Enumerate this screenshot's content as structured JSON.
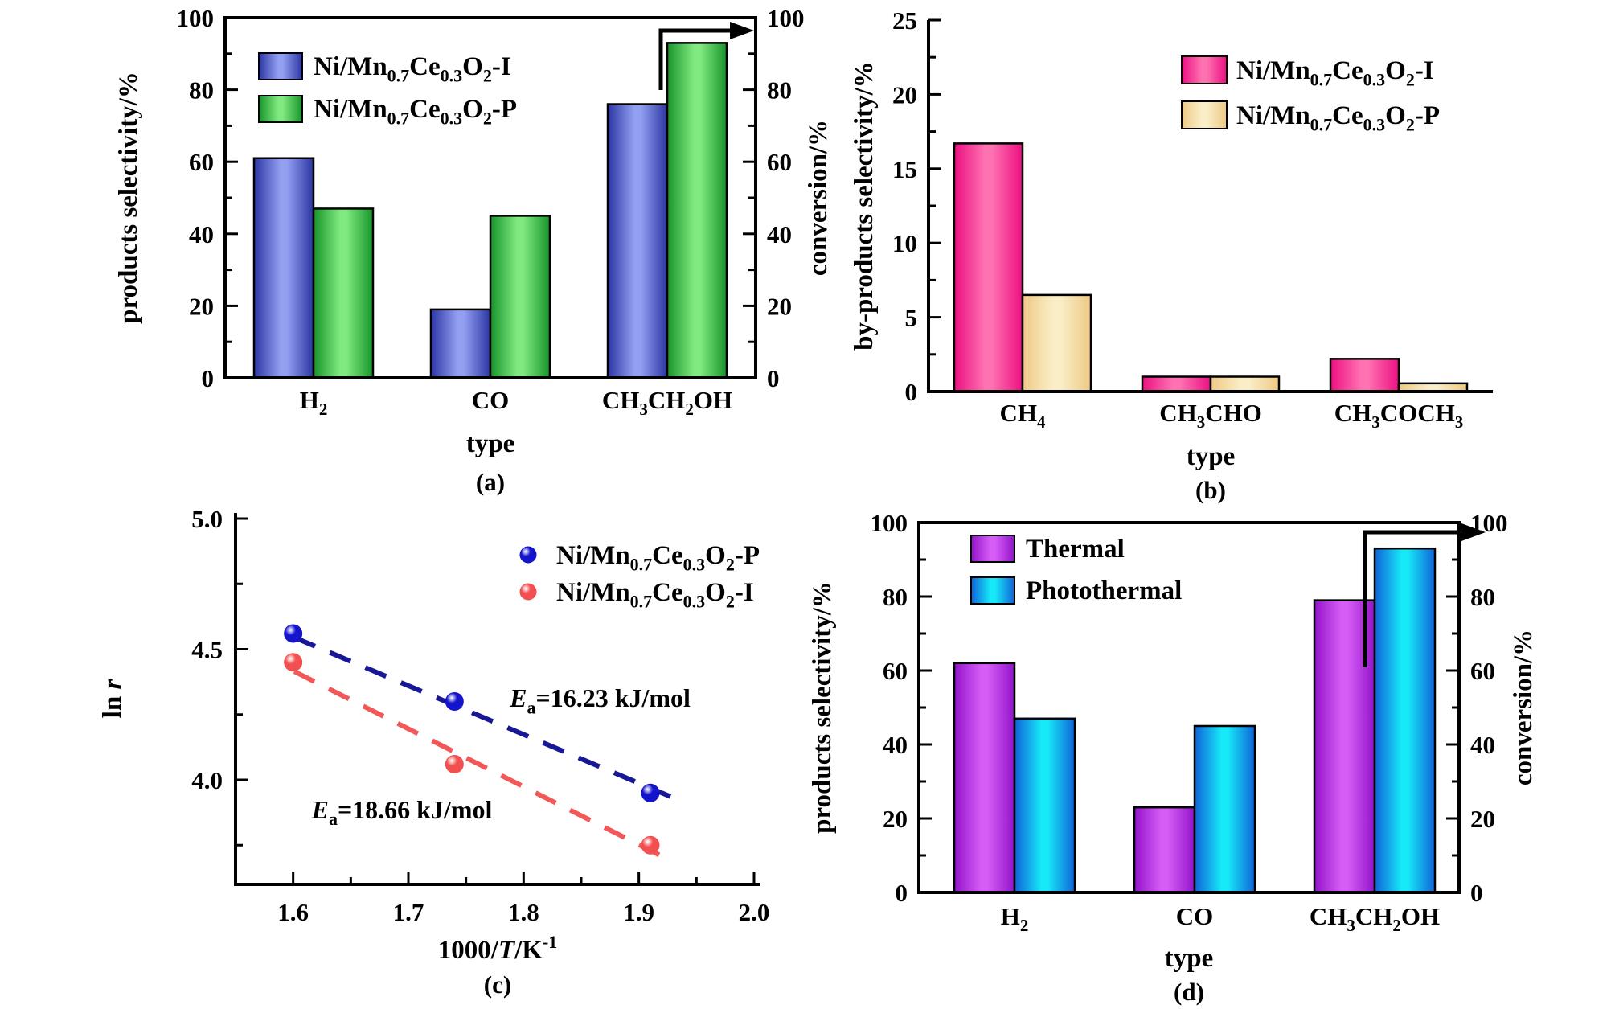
{
  "figure": {
    "background": "#ffffff",
    "description_tags": [
      "(a)",
      "(b)",
      "(c)",
      "(d)"
    ]
  },
  "chart_data": [
    {
      "id": "a",
      "type": "bar",
      "panel_label": "(a)",
      "xlabel": "type",
      "ylabel_left": "products selectivity/%",
      "ylabel_right": "conversion/%",
      "ylim": [
        0,
        100
      ],
      "y_ticks": {
        "values": [
          0,
          20,
          40,
          60,
          80,
          100
        ],
        "labels": [
          "0",
          "20",
          "40",
          "60",
          "80",
          "100"
        ]
      },
      "y_minor_ticks": [
        10,
        30,
        50,
        70,
        90
      ],
      "dual_axis": true,
      "grid": false,
      "legend_position": "top-left-inside",
      "categories": [
        "H_{2}",
        "CO",
        "CH_{3}CH_{2}OH"
      ],
      "series": [
        {
          "name": "Ni/Mn_{0.7}Ce_{0.3}O_{2}-I",
          "values": [
            61,
            19,
            76
          ],
          "edge_color": "#2b35a2",
          "mid_color": "#93a0f2"
        },
        {
          "name": "Ni/Mn_{0.7}Ce_{0.3}O_{2}-P",
          "values": [
            47,
            45,
            93
          ],
          "edge_color": "#17942a",
          "mid_color": "#80ea80"
        }
      ],
      "arrow_to_right_axis": true
    },
    {
      "id": "b",
      "type": "bar",
      "panel_label": "(b)",
      "xlabel": "type",
      "ylabel_left": "by-products selectivity/%",
      "ylim": [
        0,
        25
      ],
      "y_ticks": {
        "values": [
          0,
          5,
          10,
          15,
          20,
          25
        ],
        "labels": [
          "0",
          "5",
          "10",
          "15",
          "20",
          "25"
        ]
      },
      "y_minor_ticks": [
        2.5,
        7.5,
        12.5,
        17.5,
        22.5
      ],
      "dual_axis": false,
      "grid": false,
      "legend_position": "top-right-inside",
      "categories": [
        "CH_{4}",
        "CH_{3}CHO",
        "CH_{3}COCH_{3}"
      ],
      "series": [
        {
          "name": "Ni/Mn_{0.7}Ce_{0.3}O_{2}-I",
          "values": [
            16.7,
            1.0,
            2.2
          ],
          "edge_color": "#ec0f81",
          "mid_color": "#ff72b2"
        },
        {
          "name": "Ni/Mn_{0.7}Ce_{0.3}O_{2}-P",
          "values": [
            6.5,
            1.0,
            0.55
          ],
          "edge_color": "#eec985",
          "mid_color": "#faeec8"
        }
      ],
      "arrow_to_right_axis": false
    },
    {
      "id": "c",
      "type": "scatter",
      "panel_label": "(c)",
      "xlabel": "1000/*T*/K^{-1}",
      "ylabel_left": "ln *r*",
      "xlim": [
        1.55,
        2.0
      ],
      "ylim": [
        3.6,
        5.0
      ],
      "x_ticks": {
        "values": [
          1.6,
          1.7,
          1.8,
          1.9,
          2.0
        ],
        "labels": [
          "1.6",
          "1.7",
          "1.8",
          "1.9",
          "2.0"
        ]
      },
      "x_minor_ticks": [
        1.65,
        1.75,
        1.85,
        1.95
      ],
      "y_ticks": {
        "values": [
          4.0,
          4.5,
          5.0
        ],
        "labels": [
          "4.0",
          "4.5",
          "5.0"
        ]
      },
      "y_minor_ticks": [
        3.75,
        4.25,
        4.75
      ],
      "grid": false,
      "legend_position": "top-right-inside",
      "series": [
        {
          "name": "Ni/Mn_{0.7}Ce_{0.3}O_{2}-P",
          "marker_color": "#1414cc",
          "line_color": "#181896",
          "x": [
            1.6,
            1.74,
            1.91
          ],
          "y": [
            4.56,
            4.3,
            3.95
          ],
          "fit_line": {
            "x1": 1.601,
            "y1": 4.545,
            "x2": 1.928,
            "y2": 3.935
          }
        },
        {
          "name": "Ni/Mn_{0.7}Ce_{0.3}O_{2}-I",
          "marker_color": "#f25050",
          "line_color": "#f25858",
          "x": [
            1.6,
            1.74,
            1.91
          ],
          "y": [
            4.45,
            4.06,
            3.75
          ],
          "fit_line": {
            "x1": 1.601,
            "y1": 4.415,
            "x2": 1.928,
            "y2": 3.69
          }
        }
      ],
      "annotations": [
        {
          "text": "*E*_{a}=16.23 kJ/mol",
          "x": 1.788,
          "y": 4.28,
          "anchor": "start"
        },
        {
          "text": "*E*_{a}=18.66 kJ/mol",
          "x": 1.616,
          "y": 3.853,
          "anchor": "start"
        }
      ]
    },
    {
      "id": "d",
      "type": "bar",
      "panel_label": "(d)",
      "xlabel": "type",
      "ylabel_left": "products selectivity/%",
      "ylabel_right": "conversion/%",
      "ylim": [
        0,
        100
      ],
      "y_ticks": {
        "values": [
          0,
          20,
          40,
          60,
          80,
          100
        ],
        "labels": [
          "0",
          "20",
          "40",
          "60",
          "80",
          "100"
        ]
      },
      "y_minor_ticks": [
        10,
        30,
        50,
        70,
        90
      ],
      "dual_axis": true,
      "grid": false,
      "legend_position": "top-left-inside",
      "categories": [
        "H_{2}",
        "CO",
        "CH_{3}CH_{2}OH"
      ],
      "series": [
        {
          "name": "Thermal",
          "values": [
            62,
            23,
            79
          ],
          "edge_color": "#9213cb",
          "mid_color": "#d75df6"
        },
        {
          "name": "Photothermal",
          "values": [
            47,
            45,
            93
          ],
          "edge_color": "#0f63d8",
          "mid_color": "#18e9f9"
        }
      ],
      "arrow_to_right_axis": true
    }
  ]
}
